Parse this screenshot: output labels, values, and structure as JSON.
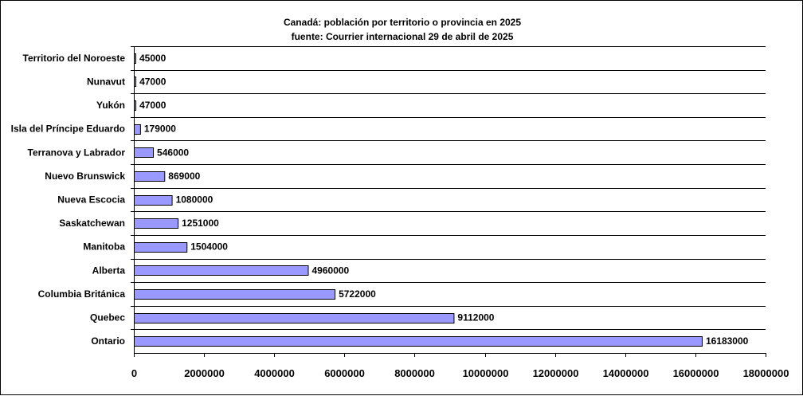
{
  "chart_data": {
    "type": "bar",
    "orientation": "horizontal",
    "title": "Canadá: población por territorio o provincia en 2025",
    "subtitle": "fuente: Courrier internacional 29 de abril de 2025",
    "categories": [
      "Territorio del Noroeste",
      "Nunavut",
      "Yukón",
      "Isla del Príncipe Eduardo",
      "Terranova y Labrador",
      "Nuevo Brunswick",
      "Nueva Escocia",
      "Saskatchewan",
      "Manitoba",
      "Alberta",
      "Columbia Británica",
      "Quebec",
      "Ontario"
    ],
    "values": [
      45000,
      47000,
      47000,
      179000,
      546000,
      869000,
      1080000,
      1251000,
      1504000,
      4960000,
      5722000,
      9112000,
      16183000
    ],
    "value_labels": [
      "45000",
      "47000",
      "47000",
      "179000",
      "546000",
      "869000",
      "1080000",
      "1251000",
      "1504000",
      "4960000",
      "5722000",
      "9112000",
      "16183000"
    ],
    "xlim": [
      0,
      18000000
    ],
    "xticks": [
      0,
      2000000,
      4000000,
      6000000,
      8000000,
      10000000,
      12000000,
      14000000,
      16000000,
      18000000
    ],
    "xtick_labels": [
      "0",
      "2000000",
      "4000000",
      "6000000",
      "8000000",
      "10000000",
      "12000000",
      "14000000",
      "16000000",
      "18000000"
    ],
    "grid": "horizontal",
    "legend": "none",
    "colors": {
      "bar_fill": "#9999ff",
      "bar_stroke": "#000000",
      "grid": "#000000",
      "background": "#ffffff",
      "text": "#000000"
    }
  }
}
